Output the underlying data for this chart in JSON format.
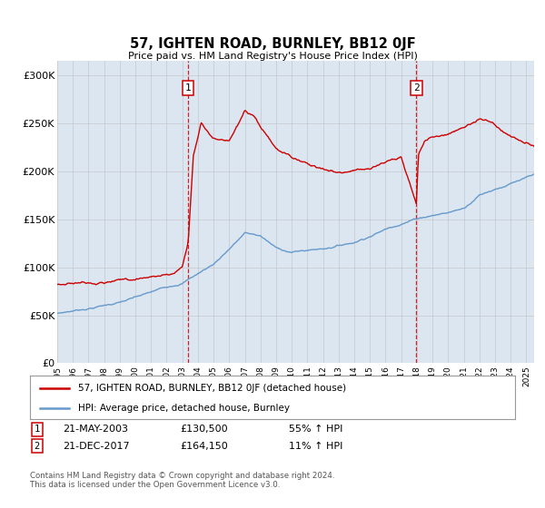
{
  "title": "57, IGHTEN ROAD, BURNLEY, BB12 0JF",
  "subtitle": "Price paid vs. HM Land Registry's House Price Index (HPI)",
  "ylabel_ticks": [
    "£0",
    "£50K",
    "£100K",
    "£150K",
    "£200K",
    "£250K",
    "£300K"
  ],
  "ytick_vals": [
    0,
    50000,
    100000,
    150000,
    200000,
    250000,
    300000
  ],
  "ylim": [
    0,
    315000
  ],
  "xlim_start": 1995.0,
  "xlim_end": 2025.5,
  "marker1_x": 2003.38,
  "marker1_label": "1",
  "marker2_x": 2017.97,
  "marker2_label": "2",
  "sale1_date": "21-MAY-2003",
  "sale1_price": "£130,500",
  "sale1_pct": "55% ↑ HPI",
  "sale2_date": "21-DEC-2017",
  "sale2_price": "£164,150",
  "sale2_pct": "11% ↑ HPI",
  "legend_line1": "57, IGHTEN ROAD, BURNLEY, BB12 0JF (detached house)",
  "legend_line2": "HPI: Average price, detached house, Burnley",
  "footer": "Contains HM Land Registry data © Crown copyright and database right 2024.\nThis data is licensed under the Open Government Licence v3.0.",
  "line_color_red": "#cc0000",
  "line_color_blue": "#6699cc",
  "background_color": "#dce6f0",
  "plot_bg": "#ffffff",
  "grid_color": "#bbbbbb"
}
